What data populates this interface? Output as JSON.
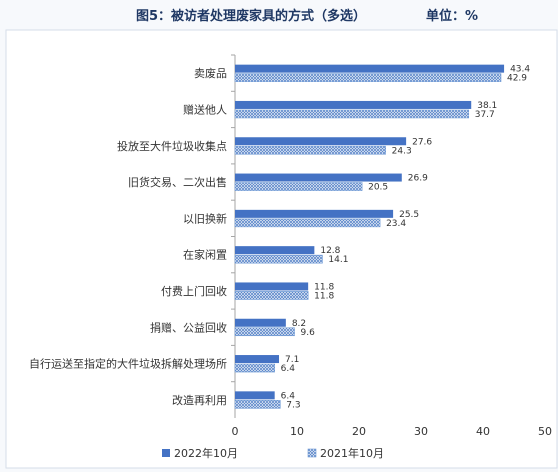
{
  "chart_data": {
    "type": "bar",
    "orientation": "horizontal",
    "title": "图5：被访者处理废家具的方式（多选）",
    "unit_label": "单位：%",
    "xlim": [
      0,
      50
    ],
    "x_ticks": [
      "0",
      "10",
      "20",
      "30",
      "40",
      "50"
    ],
    "categories": [
      "卖废品",
      "赠送他人",
      "投放至大件垃圾收集点",
      "旧货交易、二次出售",
      "以旧换新",
      "在家闲置",
      "付费上门回收",
      "捐赠、公益回收",
      "自行运送至指定的大件垃圾拆解处理场所",
      "改造再利用"
    ],
    "series": [
      {
        "name": "2022年10月",
        "values": [
          43.4,
          38.1,
          27.6,
          26.9,
          25.5,
          12.8,
          11.8,
          8.2,
          7.1,
          6.4
        ],
        "color": "#4472c4",
        "fill": "solid"
      },
      {
        "name": "2021年10月",
        "values": [
          42.9,
          37.7,
          24.3,
          20.5,
          23.4,
          14.1,
          11.8,
          9.6,
          6.4,
          7.3
        ],
        "color": "#6f9bd6",
        "fill": "crosshatch"
      }
    ],
    "grid": false,
    "legend_position": "bottom"
  }
}
